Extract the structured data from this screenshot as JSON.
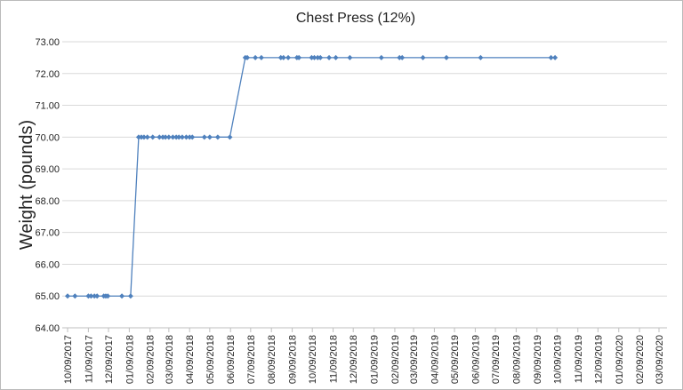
{
  "chart_data": {
    "type": "line",
    "title": "Chest Press (12%)",
    "y_label": "Weight (pounds)",
    "color": "#4f81bd",
    "grid": true,
    "x": [
      "2017-10-09",
      "2017-10-20",
      "2017-11-09",
      "2017-11-13",
      "2017-11-18",
      "2017-11-22",
      "2017-12-02",
      "2017-12-05",
      "2017-12-08",
      "2017-12-29",
      "2018-01-11",
      "2018-01-23",
      "2018-01-27",
      "2018-01-31",
      "2018-02-05",
      "2018-02-13",
      "2018-02-23",
      "2018-02-28",
      "2018-03-04",
      "2018-03-09",
      "2018-03-15",
      "2018-03-20",
      "2018-03-24",
      "2018-03-29",
      "2018-04-04",
      "2018-04-09",
      "2018-04-13",
      "2018-05-01",
      "2018-05-09",
      "2018-05-21",
      "2018-06-08",
      "2018-07-01",
      "2018-07-04",
      "2018-07-16",
      "2018-07-25",
      "2018-08-23",
      "2018-08-27",
      "2018-09-03",
      "2018-09-16",
      "2018-09-19",
      "2018-10-08",
      "2018-10-12",
      "2018-10-17",
      "2018-10-21",
      "2018-11-03",
      "2018-11-13",
      "2018-12-04",
      "2019-01-20",
      "2019-02-16",
      "2019-02-20",
      "2019-03-23",
      "2019-04-27",
      "2019-06-17",
      "2019-09-30",
      "2019-10-06"
    ],
    "values": [
      65,
      65,
      65,
      65,
      65,
      65,
      65,
      65,
      65,
      65,
      65,
      70,
      70,
      70,
      70,
      70,
      70,
      70,
      70,
      70,
      70,
      70,
      70,
      70,
      70,
      70,
      70,
      70,
      70,
      70,
      70,
      72.5,
      72.5,
      72.5,
      72.5,
      72.5,
      72.5,
      72.5,
      72.5,
      72.5,
      72.5,
      72.5,
      72.5,
      72.5,
      72.5,
      72.5,
      72.5,
      72.5,
      72.5,
      72.5,
      72.5,
      72.5,
      72.5,
      72.5,
      72.5
    ],
    "ylim": [
      64,
      73
    ],
    "yticks": [
      {
        "value": 64,
        "label": "64.00"
      },
      {
        "value": 65,
        "label": "65.00"
      },
      {
        "value": 66,
        "label": "66.00"
      },
      {
        "value": 67,
        "label": "67.00"
      },
      {
        "value": 68,
        "label": "68.00"
      },
      {
        "value": 69,
        "label": "69.00"
      },
      {
        "value": 70,
        "label": "70.00"
      },
      {
        "value": 71,
        "label": "71.00"
      },
      {
        "value": 72,
        "label": "72.00"
      },
      {
        "value": 73,
        "label": "73.00"
      }
    ],
    "xlim": [
      "2017-10-09",
      "2020-03-09"
    ],
    "xticks": [
      {
        "value": "2017-10-09",
        "label": "10/09/2017"
      },
      {
        "value": "2017-11-09",
        "label": "11/09/2017"
      },
      {
        "value": "2017-12-09",
        "label": "12/09/2017"
      },
      {
        "value": "2018-01-09",
        "label": "01/09/2018"
      },
      {
        "value": "2018-02-09",
        "label": "02/09/2018"
      },
      {
        "value": "2018-03-09",
        "label": "03/09/2018"
      },
      {
        "value": "2018-04-09",
        "label": "04/09/2018"
      },
      {
        "value": "2018-05-09",
        "label": "05/09/2018"
      },
      {
        "value": "2018-06-09",
        "label": "06/09/2018"
      },
      {
        "value": "2018-07-09",
        "label": "07/09/2018"
      },
      {
        "value": "2018-08-09",
        "label": "08/09/2018"
      },
      {
        "value": "2018-09-09",
        "label": "09/09/2018"
      },
      {
        "value": "2018-10-09",
        "label": "10/09/2018"
      },
      {
        "value": "2018-11-09",
        "label": "11/09/2018"
      },
      {
        "value": "2018-12-09",
        "label": "12/09/2018"
      },
      {
        "value": "2019-01-09",
        "label": "01/09/2019"
      },
      {
        "value": "2019-02-09",
        "label": "02/09/2019"
      },
      {
        "value": "2019-03-09",
        "label": "03/09/2019"
      },
      {
        "value": "2019-04-09",
        "label": "04/09/2019"
      },
      {
        "value": "2019-05-09",
        "label": "05/09/2019"
      },
      {
        "value": "2019-06-09",
        "label": "06/09/2019"
      },
      {
        "value": "2019-07-09",
        "label": "07/09/2019"
      },
      {
        "value": "2019-08-09",
        "label": "08/09/2019"
      },
      {
        "value": "2019-09-09",
        "label": "09/09/2019"
      },
      {
        "value": "2019-10-09",
        "label": "10/09/2019"
      },
      {
        "value": "2019-11-09",
        "label": "11/09/2019"
      },
      {
        "value": "2019-12-09",
        "label": "12/09/2019"
      },
      {
        "value": "2020-01-09",
        "label": "01/09/2020"
      },
      {
        "value": "2020-02-09",
        "label": "02/09/2020"
      },
      {
        "value": "2020-03-09",
        "label": "03/09/2020"
      }
    ]
  }
}
